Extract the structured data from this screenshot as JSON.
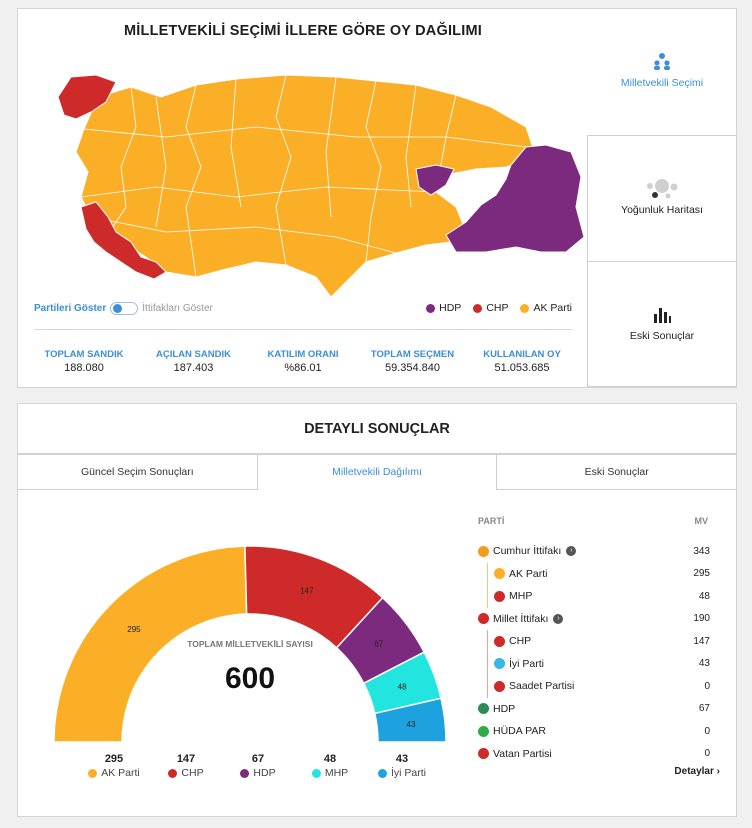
{
  "map": {
    "title": "MİLLETVEKİLİ SEÇİMİ İLLERE GÖRE OY DAĞILIMI",
    "toggle_on": "Partileri Göster",
    "toggle_off": "İttifakları Göster",
    "legend": [
      {
        "name": "HDP",
        "color": "#7b2a7e"
      },
      {
        "name": "CHP",
        "color": "#cf2a2a"
      },
      {
        "name": "AK Parti",
        "color": "#fbaf27"
      }
    ]
  },
  "stats": [
    {
      "label": "TOPLAM SANDIK",
      "value": "188.080"
    },
    {
      "label": "AÇILAN SANDIK",
      "value": "187.403"
    },
    {
      "label": "KATILIM ORANI",
      "value": "%86.01"
    },
    {
      "label": "TOPLAM SEÇMEN",
      "value": "59.354.840"
    },
    {
      "label": "KULLANILAN OY",
      "value": "51.053.685"
    }
  ],
  "side_nav": [
    {
      "label": "Milletvekili Seçimi",
      "icon": "people-icon"
    },
    {
      "label": "Yoğunluk Haritası",
      "icon": "bubbles-icon"
    },
    {
      "label": "Eski Sonuçlar",
      "icon": "bar-chart-icon"
    }
  ],
  "detail": {
    "title": "DETAYLI SONUÇLAR",
    "tabs": [
      "Güncel Seçim Sonuçları",
      "Milletvekili Dağılımı",
      "Eski Sonuçlar"
    ],
    "total_label": "TOPLAM MİLLETVEKİLİ SAYISI",
    "total_value": "600",
    "table_header": {
      "party": "PARTİ",
      "mv": "MV"
    },
    "details_link": "Detaylar"
  },
  "chart_data": {
    "type": "pie",
    "categories": [
      "AK Parti",
      "CHP",
      "HDP",
      "MHP",
      "İyi Parti"
    ],
    "values": [
      295,
      147,
      67,
      48,
      43
    ],
    "colors": [
      "#fbaf27",
      "#cf2a2a",
      "#7b2a7e",
      "#22e5e0",
      "#1ea2df"
    ],
    "total": 600
  },
  "party_rows": [
    {
      "name": "Cumhur İttifakı",
      "mv": "343",
      "kind": "alliance",
      "color": "#f39c1a"
    },
    {
      "name": "AK Parti",
      "mv": "295",
      "kind": "sub-cum",
      "color": "#fbaf27"
    },
    {
      "name": "MHP",
      "mv": "48",
      "kind": "sub-cum",
      "color": "#cf2a2a"
    },
    {
      "name": "Millet İttifakı",
      "mv": "190",
      "kind": "alliance",
      "color": "#cf2a2a"
    },
    {
      "name": "CHP",
      "mv": "147",
      "kind": "sub",
      "color": "#cf2a2a"
    },
    {
      "name": "İyi Parti",
      "mv": "43",
      "kind": "sub",
      "color": "#38b6e6"
    },
    {
      "name": "Saadet Partisi",
      "mv": "0",
      "kind": "sub",
      "color": "#cf2a2a"
    },
    {
      "name": "HDP",
      "mv": "67",
      "kind": "single",
      "color": "#2e8b57"
    },
    {
      "name": "HÜDA PAR",
      "mv": "0",
      "kind": "single",
      "color": "#2eaa4a"
    },
    {
      "name": "Vatan Partisi",
      "mv": "0",
      "kind": "single",
      "color": "#cf2a2a"
    }
  ]
}
